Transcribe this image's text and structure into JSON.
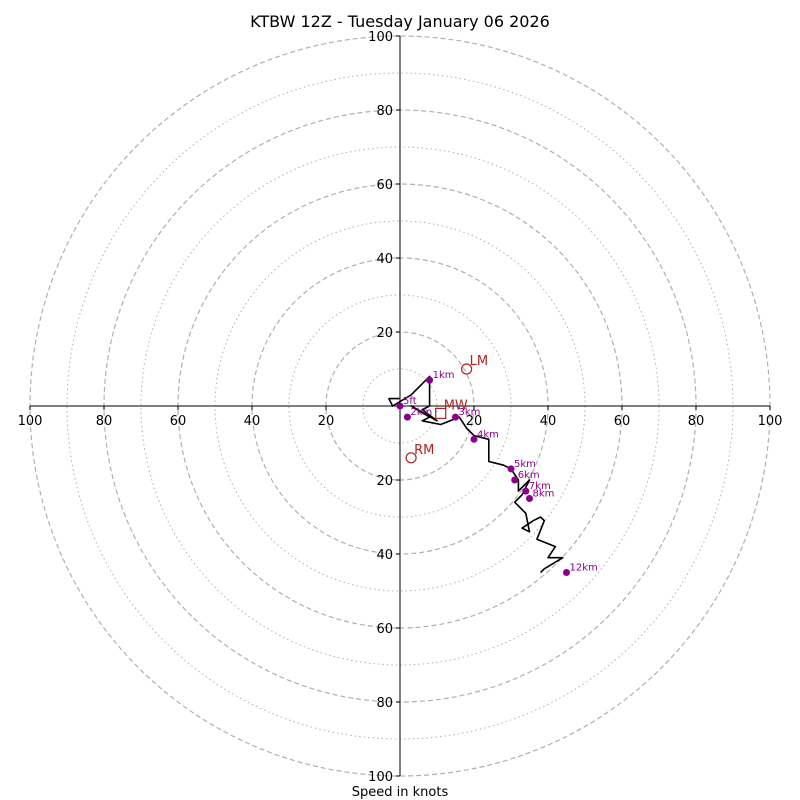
{
  "chart_data": {
    "type": "scatter",
    "subtype": "hodograph",
    "title": "KTBW 12Z - Tuesday January 06 2026",
    "xlabel": "Speed in knots",
    "ylabel": "",
    "range_kt": 100,
    "rings_dashed_kt": [
      20,
      40,
      60,
      80,
      100
    ],
    "rings_dotted_kt": [
      10,
      30,
      50,
      70,
      90
    ],
    "x_tick_labels": [
      "100",
      "80",
      "60",
      "40",
      "20",
      "",
      "20",
      "40",
      "60",
      "80",
      "100"
    ],
    "x_tick_values": [
      -100,
      -80,
      -60,
      -40,
      -20,
      0,
      20,
      40,
      60,
      80,
      100
    ],
    "y_tick_labels_upper": [
      "20",
      "40",
      "60",
      "80",
      "100"
    ],
    "y_tick_labels_lower": [
      "20",
      "40",
      "60",
      "80",
      "100"
    ],
    "y_tick_values_upper": [
      20,
      40,
      60,
      80,
      100
    ],
    "y_tick_values_lower": [
      -20,
      -40,
      -60,
      -80,
      -100
    ],
    "wind_trace_uv_kt": [
      [
        0,
        2
      ],
      [
        -3,
        2
      ],
      [
        -2,
        0
      ],
      [
        3,
        3
      ],
      [
        8,
        8
      ],
      [
        8,
        4
      ],
      [
        8,
        0
      ],
      [
        6,
        -1
      ],
      [
        10,
        -4
      ],
      [
        3,
        0
      ],
      [
        8,
        -3
      ],
      [
        6,
        -4
      ],
      [
        11,
        -5
      ],
      [
        16,
        -3
      ],
      [
        18,
        -6
      ],
      [
        20,
        -8
      ],
      [
        24,
        -9
      ],
      [
        24,
        -15
      ],
      [
        28,
        -16
      ],
      [
        30,
        -17
      ],
      [
        32,
        -20
      ],
      [
        32,
        -23
      ],
      [
        35,
        -20
      ],
      [
        33,
        -24
      ],
      [
        31,
        -26
      ],
      [
        34,
        -29
      ],
      [
        35,
        -34
      ],
      [
        33,
        -33
      ],
      [
        36,
        -31
      ],
      [
        38,
        -30
      ],
      [
        39,
        -31
      ],
      [
        37,
        -36
      ],
      [
        42,
        -38
      ],
      [
        40,
        -41
      ],
      [
        44,
        -41
      ],
      [
        39,
        -44
      ],
      [
        38,
        -45
      ]
    ],
    "height_markers": [
      {
        "label": "1km",
        "u": 8,
        "v": 7
      },
      {
        "label": "5ft",
        "u": 0,
        "v": 0
      },
      {
        "label": "2km",
        "u": 2,
        "v": -3
      },
      {
        "label": "3km",
        "u": 15,
        "v": -3
      },
      {
        "label": "4km",
        "u": 20,
        "v": -9
      },
      {
        "label": "5km",
        "u": 30,
        "v": -17
      },
      {
        "label": "6km",
        "u": 31,
        "v": -20
      },
      {
        "label": "7km",
        "u": 34,
        "v": -23
      },
      {
        "label": "8km",
        "u": 35,
        "v": -25
      },
      {
        "label": "12km",
        "u": 45,
        "v": -45
      }
    ],
    "storm_motion_markers": [
      {
        "label": "LM",
        "u": 18,
        "v": 10,
        "shape": "circle"
      },
      {
        "label": "RM",
        "u": 3,
        "v": -14,
        "shape": "circle"
      },
      {
        "label": "MW",
        "u": 11,
        "v": -2,
        "shape": "square"
      }
    ],
    "colors": {
      "trace": "#000000",
      "height_marker": "#8b008b",
      "storm_motion": "#b22222",
      "rings": "#b0b0b0",
      "axes": "#000000"
    }
  }
}
